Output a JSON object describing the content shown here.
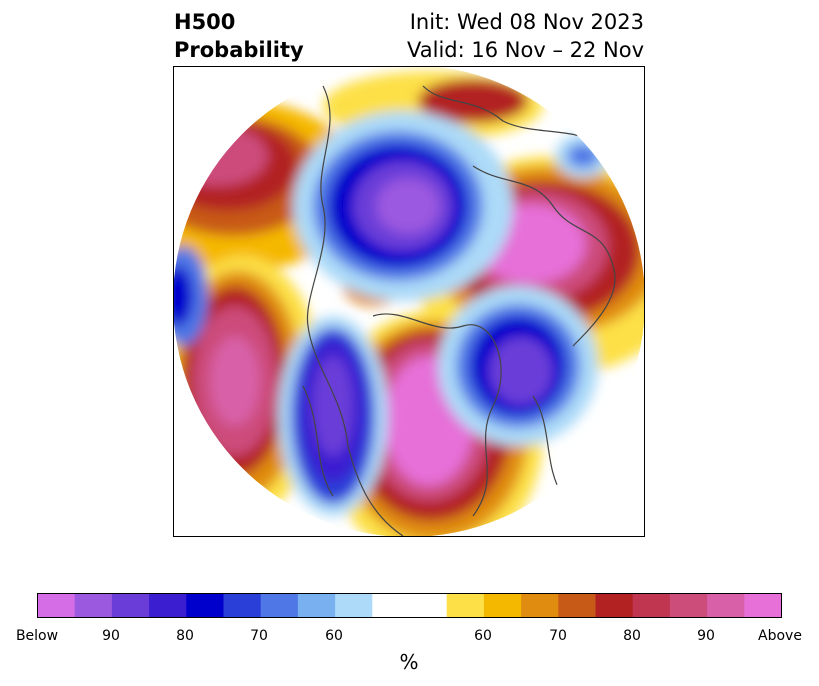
{
  "header": {
    "field": "H500",
    "product": "Probability",
    "init": "Init: Wed 08 Nov 2023",
    "valid": "Valid: 16 Nov – 22 Nov"
  },
  "colorbar": {
    "unit": "%",
    "labels": [
      "Below",
      "90",
      "80",
      "70",
      "60",
      "60",
      "70",
      "80",
      "90",
      "Above"
    ],
    "below_colors": [
      "#d56ee6",
      "#9b59e0",
      "#6a3cd8",
      "#3a1ed0",
      "#0000cc",
      "#2a3fd8",
      "#4f78e6",
      "#78b0f0",
      "#acdaf8"
    ],
    "neutral_color": "#ffffff",
    "above_colors": [
      "#fde047",
      "#f5b800",
      "#e08c10",
      "#c85a18",
      "#b22222",
      "#c03550",
      "#cc4c7a",
      "#d860a8",
      "#e670d8"
    ]
  }
}
